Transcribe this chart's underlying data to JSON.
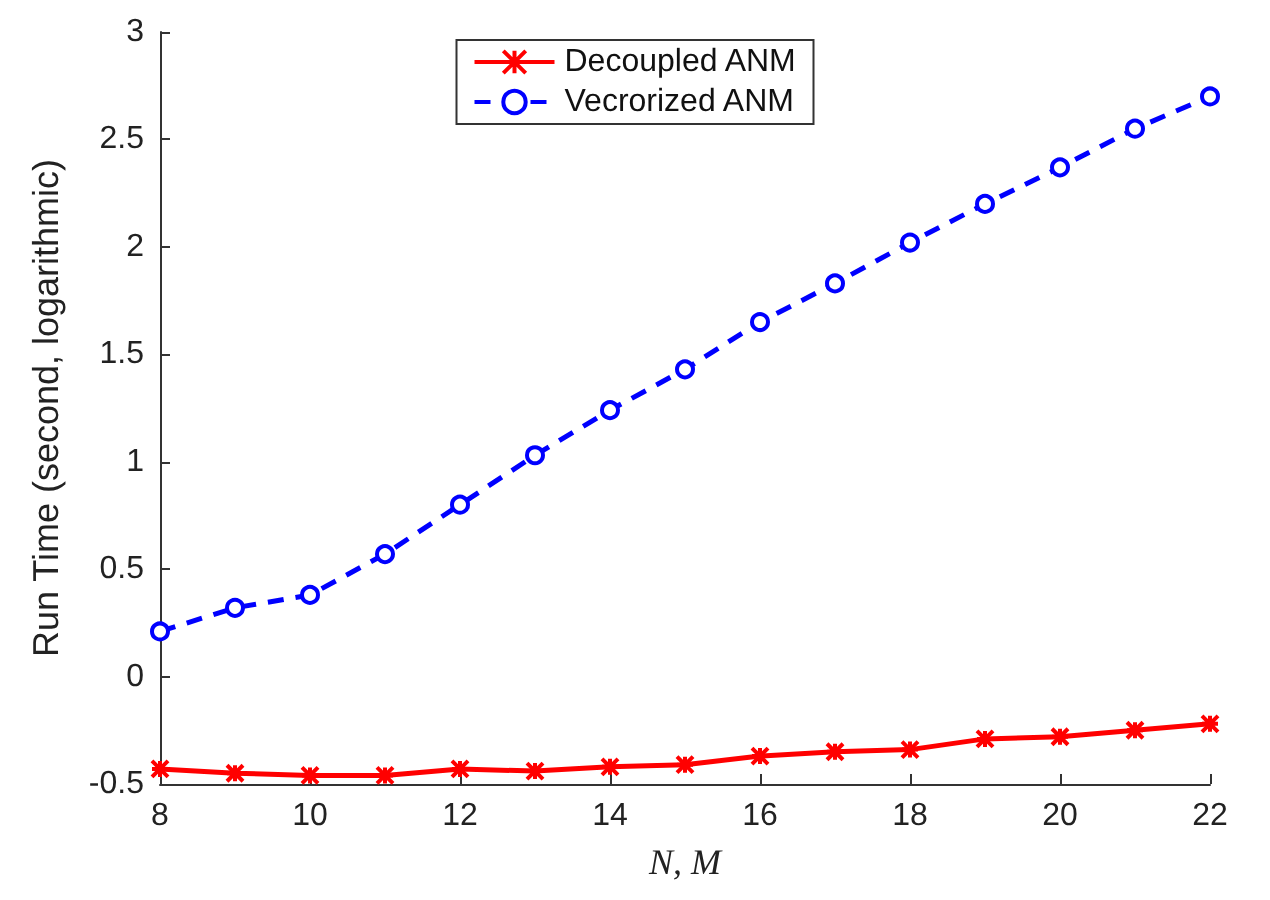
{
  "chart_data": {
    "type": "line",
    "xlabel": "N, M",
    "ylabel": "Run Time (second, logarithmic)",
    "x": [
      8,
      9,
      10,
      11,
      12,
      13,
      14,
      15,
      16,
      17,
      18,
      19,
      20,
      21,
      22
    ],
    "xlim": [
      8,
      22
    ],
    "xticks": [
      8,
      10,
      12,
      14,
      16,
      18,
      20,
      22
    ],
    "ylim": [
      -0.5,
      3
    ],
    "yticks": [
      -0.5,
      0,
      0.5,
      1,
      1.5,
      2,
      2.5,
      3
    ],
    "grid": false,
    "legend": "top",
    "series": [
      {
        "name": "Decoupled ANM",
        "color": "#ff0000",
        "marker": "cross",
        "line_style": "solid",
        "values": [
          -0.43,
          -0.45,
          -0.46,
          -0.46,
          -0.43,
          -0.44,
          -0.42,
          -0.41,
          -0.37,
          -0.35,
          -0.34,
          -0.29,
          -0.28,
          -0.25,
          -0.22
        ]
      },
      {
        "name": "Vecrorized ANM",
        "color": "#0000ff",
        "marker": "circle",
        "line_style": "dashed",
        "values": [
          0.21,
          0.32,
          0.38,
          0.57,
          0.8,
          1.03,
          1.24,
          1.43,
          1.65,
          1.83,
          2.02,
          2.2,
          2.37,
          2.55,
          2.7
        ]
      }
    ]
  }
}
